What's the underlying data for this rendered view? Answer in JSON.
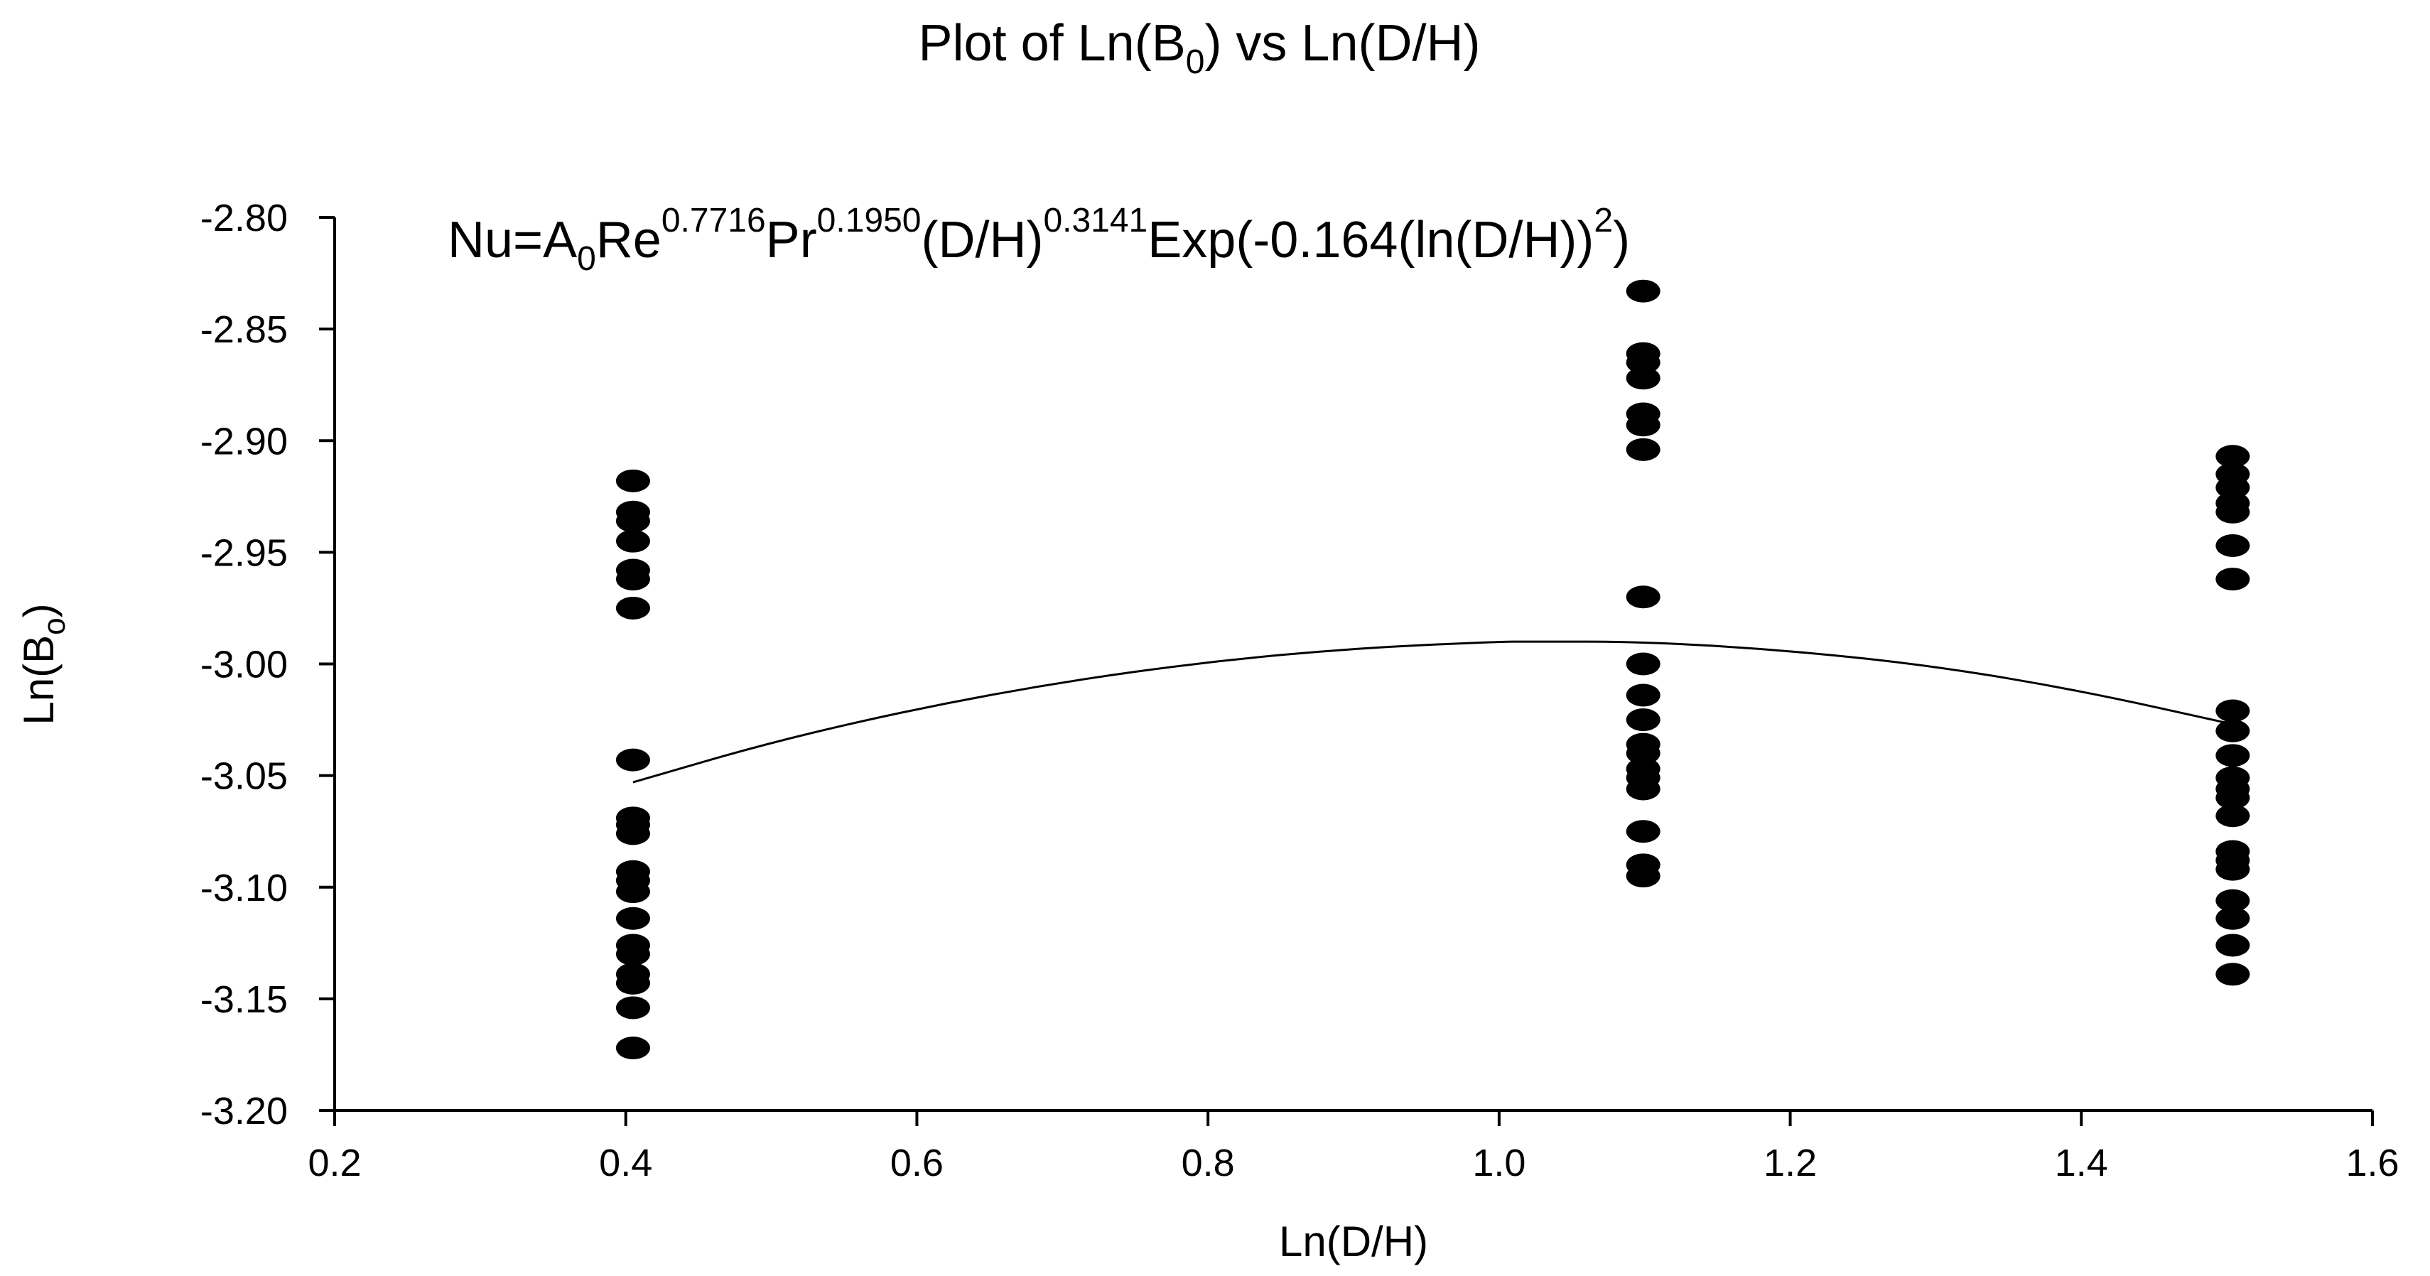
{
  "chart_data": {
    "type": "scatter",
    "title": {
      "pre": "Plot of Ln(B",
      "sub": "0",
      "post": ") vs Ln(D/H)"
    },
    "equation": {
      "p1": "Nu=A",
      "s1": "0",
      "p2": "Re",
      "e1": "0.7716",
      "p3": "Pr",
      "e2": "0.1950",
      "p4": "(D/H)",
      "e3": "0.3141",
      "p5": "Exp(-0.164(ln(D/H))",
      "e4": "2",
      "p6": ")"
    },
    "xlabel": "Ln(D/H)",
    "ylabel": {
      "pre": "Ln(B",
      "sub": "o",
      "post": ")"
    },
    "xlim": [
      0.2,
      1.6
    ],
    "ylim": [
      -3.2,
      -2.8
    ],
    "xticks": [
      "0.2",
      "0.4",
      "0.6",
      "0.8",
      "1.0",
      "1.2",
      "1.4",
      "1.6"
    ],
    "yticks": [
      "-2.80",
      "-2.85",
      "-2.90",
      "-2.95",
      "-3.00",
      "-3.05",
      "-3.10",
      "-3.15",
      "-3.20"
    ],
    "grid": false,
    "series": [
      {
        "type": "scatter",
        "color": "#000000",
        "points": [
          [
            0.405,
            -2.918
          ],
          [
            0.405,
            -2.932
          ],
          [
            0.405,
            -2.936
          ],
          [
            0.405,
            -2.945
          ],
          [
            0.405,
            -2.958
          ],
          [
            0.405,
            -2.962
          ],
          [
            0.405,
            -2.975
          ],
          [
            0.405,
            -3.043
          ],
          [
            0.405,
            -3.069
          ],
          [
            0.405,
            -3.072
          ],
          [
            0.405,
            -3.076
          ],
          [
            0.405,
            -3.093
          ],
          [
            0.405,
            -3.097
          ],
          [
            0.405,
            -3.102
          ],
          [
            0.405,
            -3.114
          ],
          [
            0.405,
            -3.126
          ],
          [
            0.405,
            -3.13
          ],
          [
            0.405,
            -3.139
          ],
          [
            0.405,
            -3.143
          ],
          [
            0.405,
            -3.154
          ],
          [
            0.405,
            -3.172
          ],
          [
            1.099,
            -2.833
          ],
          [
            1.099,
            -2.861
          ],
          [
            1.099,
            -2.865
          ],
          [
            1.099,
            -2.872
          ],
          [
            1.099,
            -2.888
          ],
          [
            1.099,
            -2.893
          ],
          [
            1.099,
            -2.904
          ],
          [
            1.099,
            -2.97
          ],
          [
            1.099,
            -3.0
          ],
          [
            1.099,
            -3.014
          ],
          [
            1.099,
            -3.025
          ],
          [
            1.099,
            -3.036
          ],
          [
            1.099,
            -3.04
          ],
          [
            1.099,
            -3.047
          ],
          [
            1.099,
            -3.051
          ],
          [
            1.099,
            -3.056
          ],
          [
            1.099,
            -3.075
          ],
          [
            1.099,
            -3.09
          ],
          [
            1.099,
            -3.095
          ],
          [
            1.504,
            -2.907
          ],
          [
            1.504,
            -2.915
          ],
          [
            1.504,
            -2.921
          ],
          [
            1.504,
            -2.928
          ],
          [
            1.504,
            -2.932
          ],
          [
            1.504,
            -2.947
          ],
          [
            1.504,
            -2.962
          ],
          [
            1.504,
            -3.021
          ],
          [
            1.504,
            -3.03
          ],
          [
            1.504,
            -3.041
          ],
          [
            1.504,
            -3.051
          ],
          [
            1.504,
            -3.056
          ],
          [
            1.504,
            -3.06
          ],
          [
            1.504,
            -3.068
          ],
          [
            1.504,
            -3.084
          ],
          [
            1.504,
            -3.088
          ],
          [
            1.504,
            -3.092
          ],
          [
            1.504,
            -3.106
          ],
          [
            1.504,
            -3.114
          ],
          [
            1.504,
            -3.126
          ],
          [
            1.504,
            -3.139
          ]
        ]
      },
      {
        "type": "line",
        "color": "#000000",
        "x": [
          0.405,
          0.5,
          0.6,
          0.7,
          0.8,
          0.9,
          1.0,
          1.02,
          1.1,
          1.2,
          1.3,
          1.4,
          1.504
        ],
        "y": [
          -3.053,
          -3.035,
          -3.02,
          -3.008,
          -2.999,
          -2.993,
          -2.99,
          -2.99,
          -2.99,
          -2.994,
          -3.001,
          -3.012,
          -3.027
        ]
      }
    ]
  }
}
